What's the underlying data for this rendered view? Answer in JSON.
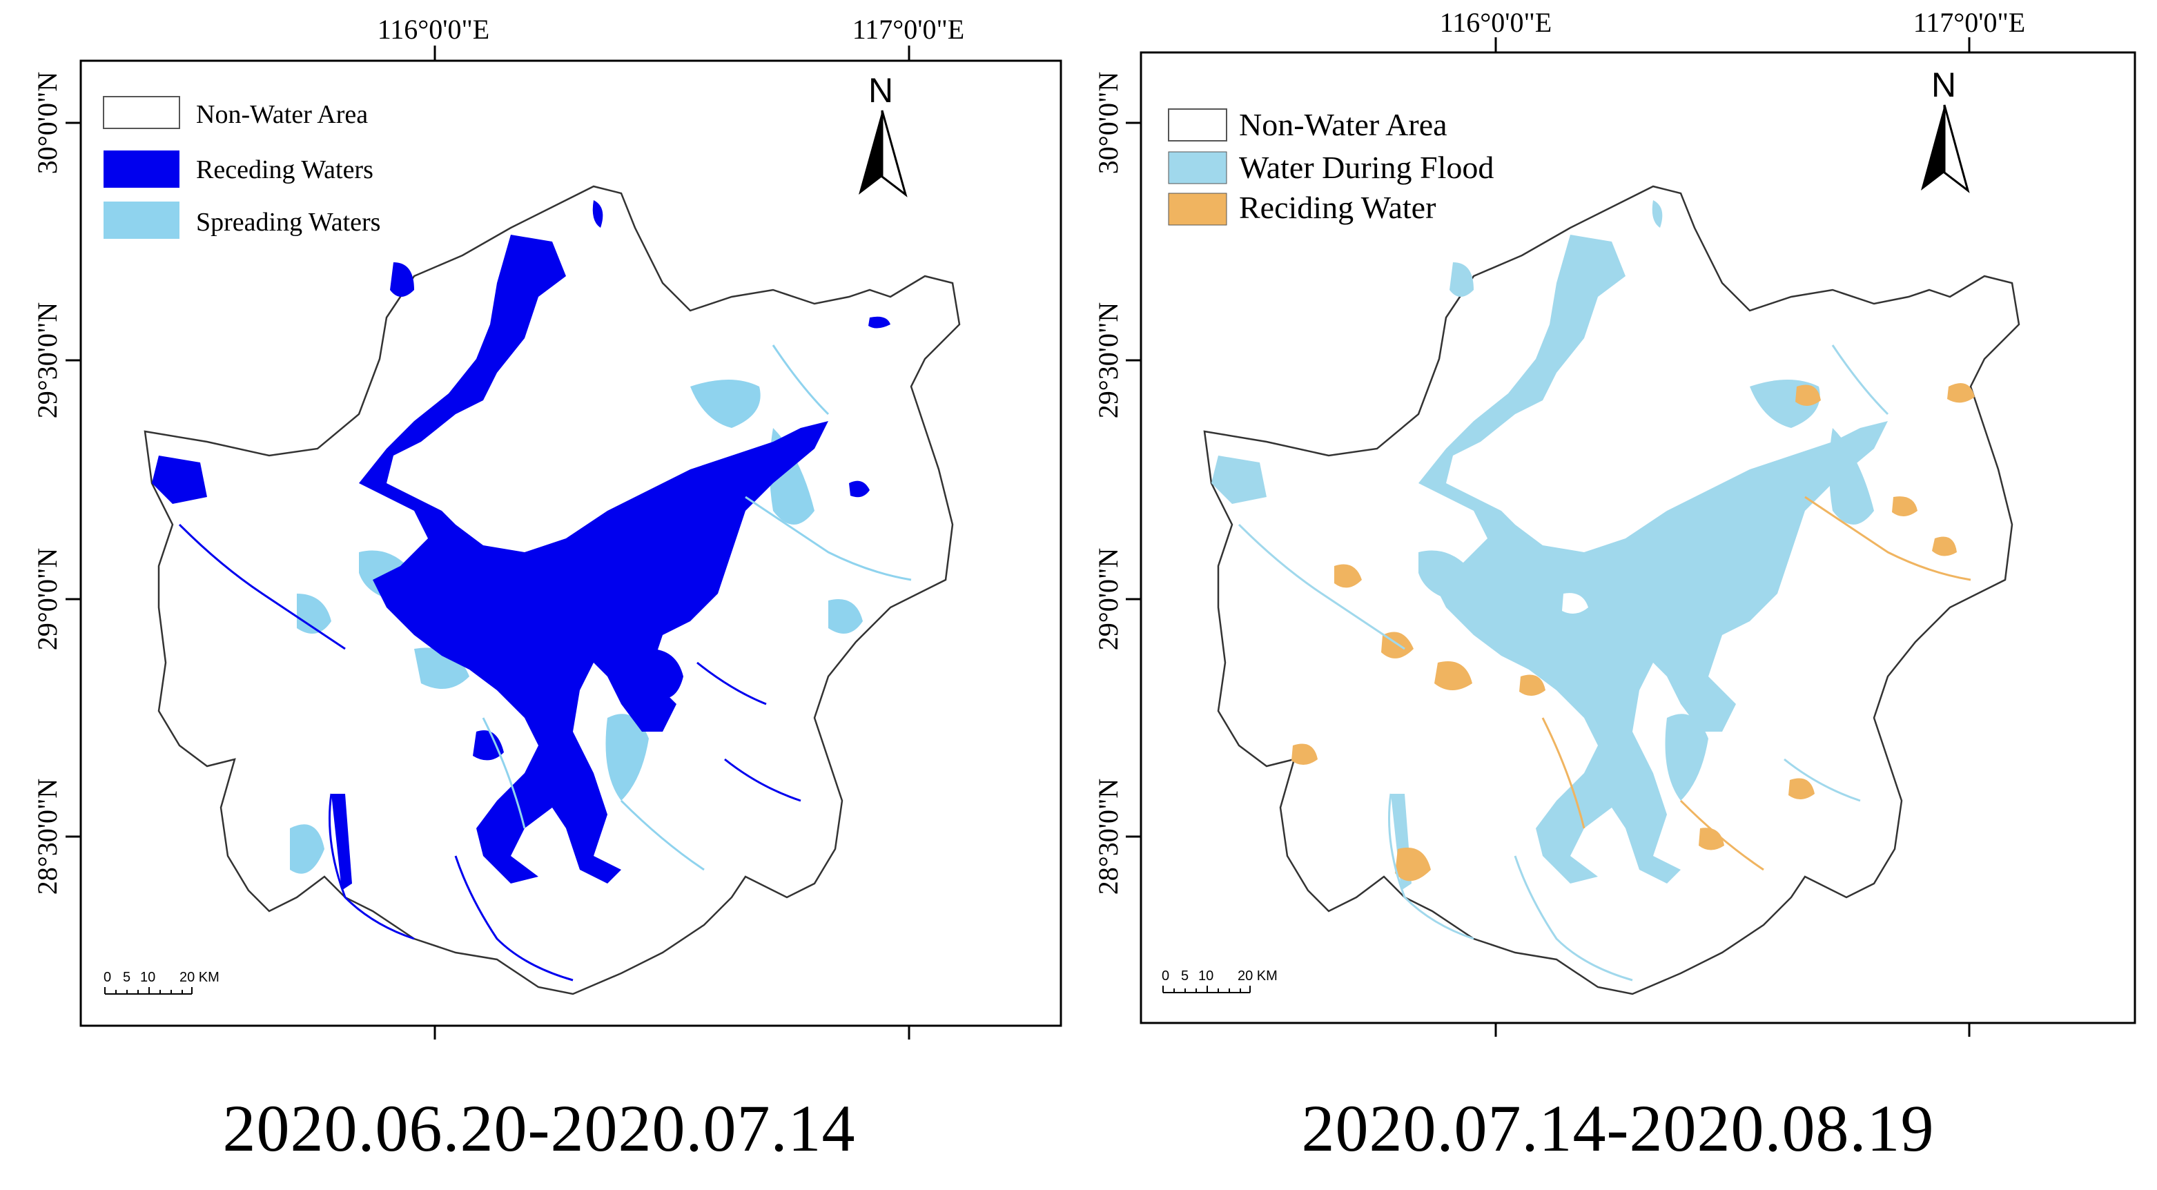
{
  "panels": [
    {
      "id": "left",
      "date_range": "2020.06.20-2020.07.14",
      "lon_labels": [
        "116°0'0\"E",
        "117°0'0\"E"
      ],
      "lat_labels": [
        "30°0'0\"N",
        "29°30'0\"N",
        "29°0'0\"N",
        "28°30'0\"N"
      ],
      "north_label": "N",
      "scale_labels": [
        "0",
        "5",
        "10",
        "20 KM"
      ],
      "legend": [
        {
          "label": "Non-Water Area",
          "color": "#ffffff"
        },
        {
          "label": "Receding Waters",
          "color": "#0000ee"
        },
        {
          "label": "Spreading Waters",
          "color": "#8fd3ee"
        }
      ]
    },
    {
      "id": "right",
      "date_range": "2020.07.14-2020.08.19",
      "lon_labels": [
        "116°0'0\"E",
        "117°0'0\"E"
      ],
      "lat_labels": [
        "30°0'0\"N",
        "29°30'0\"N",
        "29°0'0\"N",
        "28°30'0\"N"
      ],
      "north_label": "N",
      "scale_labels": [
        "0",
        "5",
        "10",
        "20 KM"
      ],
      "legend": [
        {
          "label": "Non-Water Area",
          "color": "#ffffff"
        },
        {
          "label": "Water During Flood",
          "color": "#a0d8ec"
        },
        {
          "label": "Reciding Water",
          "color": "#f0b460"
        }
      ]
    }
  ],
  "colors": {
    "receding": "#0000ee",
    "spreading": "#8fd3ee",
    "flood": "#a0d8ec",
    "reciding": "#f0b460",
    "boundary": "#333333"
  }
}
